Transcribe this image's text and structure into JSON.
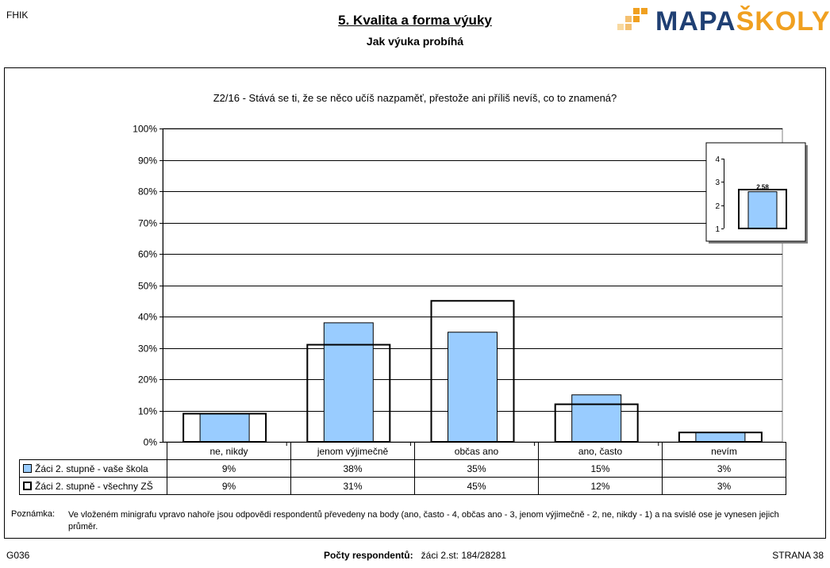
{
  "header": {
    "school_code": "FHIK",
    "title": "5. Kvalita a forma výuky",
    "subtitle": "Jak výuka probíhá",
    "logo_part1": "MAPA",
    "logo_part2": "ŠKOLY"
  },
  "colors": {
    "school_bar": "#99ccff",
    "gridline": "#000000",
    "logo_blue": "#1f3f73",
    "logo_orange": "#f0a020"
  },
  "chart_data": {
    "type": "bar",
    "title": "Z2/16 - Stává se ti, že se něco učíš nazpaměť, přestože ani příliš nevíš, co to znamená?",
    "categories": [
      "ne, nikdy",
      "jenom výjimečně",
      "občas ano",
      "ano, často",
      "nevím"
    ],
    "series": [
      {
        "name": "Žáci 2. stupně - vaše škola",
        "values": [
          9,
          38,
          35,
          15,
          3
        ],
        "labels": [
          "9%",
          "38%",
          "35%",
          "15%",
          "3%"
        ]
      },
      {
        "name": "Žáci 2. stupně - všechny ZŠ",
        "values": [
          9,
          31,
          45,
          12,
          3
        ],
        "labels": [
          "9%",
          "31%",
          "45%",
          "12%",
          "3%"
        ]
      }
    ],
    "yticks": [
      "0%",
      "10%",
      "20%",
      "30%",
      "40%",
      "50%",
      "60%",
      "70%",
      "80%",
      "90%",
      "100%"
    ],
    "ylim": [
      0,
      100
    ],
    "grid": true,
    "inset": {
      "yticks": [
        "1",
        "2",
        "3",
        "4"
      ],
      "ylim": [
        1,
        4
      ],
      "school_value": 2.58,
      "school_label": "2.58",
      "all_value": 2.67
    }
  },
  "note": {
    "label": "Poznámka:",
    "text": "Ve vloženém minigrafu vpravo nahoře jsou odpovědi respondentů převedeny na body (ano, často - 4, občas ano - 3, jenom výjimečně - 2, ne, nikdy - 1) a na svislé ose je vynesen jejich průměr."
  },
  "footer": {
    "left": "G036",
    "center_label": "Počty respondentů:",
    "center_value": "žáci 2.st: 184/28281",
    "right": "STRANA 38"
  }
}
